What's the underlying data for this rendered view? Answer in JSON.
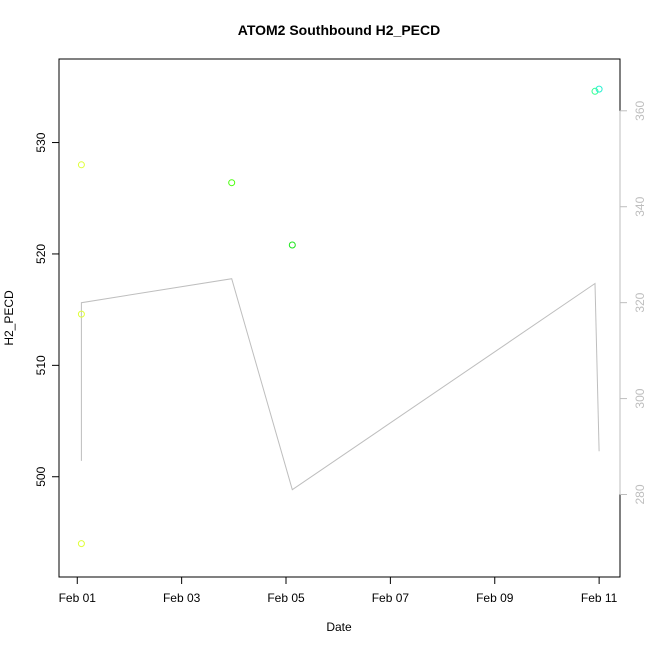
{
  "chart_data": {
    "type": "scatter",
    "title": "ATOM2 Southbound H2_PECD",
    "xlabel": "Date",
    "ylabel": "H2_PECD",
    "x_ticks": [
      "Feb 01",
      "Feb 03",
      "Feb 05",
      "Feb 07",
      "Feb 09",
      "Feb 11"
    ],
    "x_tick_days": [
      1,
      3,
      5,
      7,
      9,
      11
    ],
    "xlim_days": [
      0.65,
      11.4
    ],
    "ylim": [
      491,
      537.5
    ],
    "y_ticks": [
      500,
      510,
      520,
      530
    ],
    "y_right_ticks": [
      280,
      300,
      320,
      340,
      360
    ],
    "y_right_lim": [
      262.8,
      370.8
    ],
    "axis_color_right": "#bebebe",
    "line_color": "#bebebe",
    "grid": false,
    "points": [
      {
        "day": 1.08,
        "y": 528.0,
        "color": "#e0ff3a"
      },
      {
        "day": 1.08,
        "y": 514.6,
        "color": "#e0ff3a"
      },
      {
        "day": 1.08,
        "y": 494.0,
        "color": "#e0ff3a"
      },
      {
        "day": 3.96,
        "y": 526.4,
        "color": "#4bff0f"
      },
      {
        "day": 5.12,
        "y": 520.8,
        "color": "#1ce61c"
      },
      {
        "day": 10.92,
        "y": 534.6,
        "color": "#30ff90"
      },
      {
        "day": 11.0,
        "y": 534.8,
        "color": "#28f0d0"
      }
    ],
    "line_series": [
      {
        "day": 1.08,
        "y": 287
      },
      {
        "day": 1.08,
        "y": 320
      },
      {
        "day": 3.96,
        "y": 325
      },
      {
        "day": 5.12,
        "y": 281
      },
      {
        "day": 10.92,
        "y": 324
      },
      {
        "day": 11.0,
        "y": 289
      }
    ]
  }
}
